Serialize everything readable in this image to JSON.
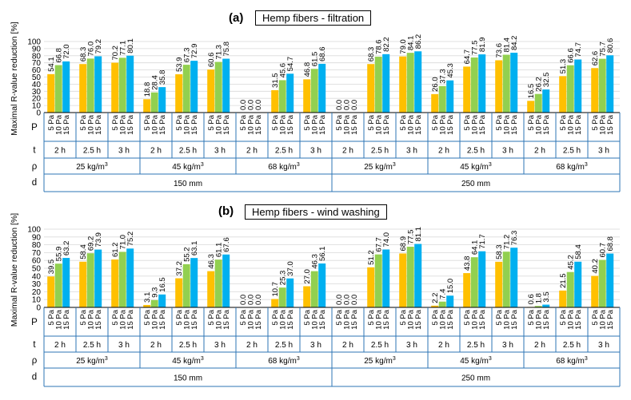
{
  "colors": {
    "p5": "#FFC000",
    "p10": "#92D050",
    "p15": "#00B0F0",
    "border": "#2E75B6",
    "grid": "#D9D9D9"
  },
  "chart_data": [
    {
      "type": "bar",
      "panel": "(a)",
      "title": "Hemp fibers - filtration",
      "ylabel": "Maximal R-value reduction [%]",
      "ylim": [
        0,
        100
      ],
      "yticks": [
        "0",
        "10",
        "20",
        "30",
        "40",
        "50",
        "60",
        "70",
        "80",
        "90",
        "100"
      ],
      "row_labels": {
        "P": "P",
        "t": "t",
        "rho": "ρ",
        "d": "d"
      },
      "pressures": [
        "5 Pa",
        "10 Pa",
        "15 Pa"
      ],
      "times": [
        "2 h",
        "2.5 h",
        "3 h"
      ],
      "densities": [
        "25 kg/m",
        "45 kg/m",
        "68 kg/m",
        "25 kg/m",
        "45 kg/m",
        "68 kg/m"
      ],
      "density_exp": "3",
      "thicknesses": [
        "150 mm",
        "250 mm"
      ],
      "values": [
        [
          [
            54.1,
            66.8,
            72.0
          ],
          [
            68.3,
            76.0,
            79.2
          ],
          [
            70.2,
            77.1,
            80.1
          ]
        ],
        [
          [
            18.8,
            28.4,
            35.8
          ],
          [
            53.9,
            67.3,
            72.9
          ],
          [
            60.6,
            71.3,
            75.8
          ]
        ],
        [
          [
            0.0,
            0.0,
            0.0
          ],
          [
            31.5,
            45.6,
            54.7
          ],
          [
            46.8,
            61.5,
            68.6
          ]
        ],
        [
          [
            0.0,
            0.0,
            0.0
          ],
          [
            68.3,
            78.6,
            82.2
          ],
          [
            79.0,
            84.1,
            86.2
          ]
        ],
        [
          [
            26.0,
            37.3,
            45.3
          ],
          [
            64.7,
            77.5,
            81.9
          ],
          [
            73.6,
            81.4,
            84.2
          ]
        ],
        [
          [
            16.5,
            26.2,
            32.5
          ],
          [
            51.3,
            66.6,
            74.7
          ],
          [
            62.6,
            75.7,
            80.6
          ]
        ]
      ]
    },
    {
      "type": "bar",
      "panel": "(b)",
      "title": "Hemp fibers - wind washing",
      "ylabel": "Maximal R-value reduction [%]",
      "ylim": [
        0,
        100
      ],
      "yticks": [
        "0",
        "10",
        "20",
        "30",
        "40",
        "50",
        "60",
        "70",
        "80",
        "90",
        "100"
      ],
      "row_labels": {
        "P": "P",
        "t": "t",
        "rho": "ρ",
        "d": "d"
      },
      "pressures": [
        "5 Pa",
        "10 Pa",
        "15 Pa"
      ],
      "times": [
        "2 h",
        "2.5 h",
        "3 h"
      ],
      "densities": [
        "25 kg/m",
        "45 kg/m",
        "68 kg/m",
        "25 kg/m",
        "45 kg/m",
        "68 kg/m"
      ],
      "density_exp": "3",
      "thicknesses": [
        "150 mm",
        "250 mm"
      ],
      "values": [
        [
          [
            39.5,
            55.9,
            63.2
          ],
          [
            58.4,
            69.2,
            73.9
          ],
          [
            61.2,
            71.0,
            75.2
          ]
        ],
        [
          [
            3.1,
            9.3,
            16.5
          ],
          [
            37.2,
            55.2,
            63.1
          ],
          [
            46.3,
            61.1,
            67.6
          ]
        ],
        [
          [
            0.0,
            0.0,
            0.0
          ],
          [
            10.7,
            25.3,
            37.0
          ],
          [
            27.0,
            46.3,
            56.1
          ]
        ],
        [
          [
            0.0,
            0.0,
            0.0
          ],
          [
            51.2,
            67.7,
            74.0
          ],
          [
            68.9,
            77.5,
            81.1
          ]
        ],
        [
          [
            2.2,
            7.4,
            15.0
          ],
          [
            43.8,
            64.1,
            71.7
          ],
          [
            58.3,
            71.2,
            76.3
          ]
        ],
        [
          [
            0.6,
            1.8,
            3.5
          ],
          [
            21.5,
            45.2,
            58.4
          ],
          [
            40.2,
            60.7,
            68.8
          ]
        ]
      ]
    }
  ]
}
